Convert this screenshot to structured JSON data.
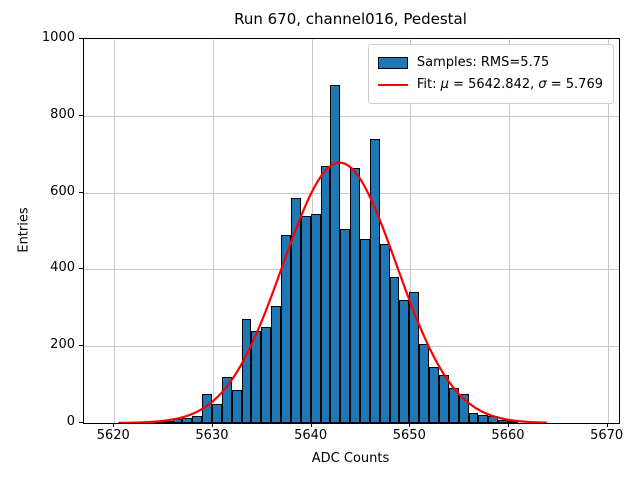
{
  "title": "Run 670, channel016, Pedestal",
  "xlabel": "ADC Counts",
  "ylabel": "Entries",
  "legend": {
    "samples_label": "Samples: RMS=5.75",
    "fit_prefix": "Fit: ",
    "fit_mu_symbol": "μ",
    "fit_mu_value": " = 5642.842, ",
    "fit_sigma_symbol": "σ",
    "fit_sigma_value": " = 5.769"
  },
  "colors": {
    "bar_fill": "#1f77b4",
    "bar_edge": "#000000",
    "fit_line": "#ff0000",
    "grid": "#c9c9c9",
    "background": "#ffffff"
  },
  "chart_data": {
    "type": "bar",
    "subtype": "histogram",
    "title": "Run 670, channel016, Pedestal",
    "xlabel": "ADC Counts",
    "ylabel": "Entries",
    "bin_start": 5623.9,
    "bin_width": 1,
    "values": [
      3,
      6,
      11,
      14,
      19,
      75,
      50,
      120,
      85,
      270,
      240,
      250,
      305,
      490,
      585,
      540,
      545,
      670,
      880,
      505,
      665,
      480,
      740,
      465,
      380,
      320,
      340,
      205,
      145,
      125,
      90,
      75,
      25,
      22,
      17,
      7,
      3
    ],
    "x_ticks": [
      5620,
      5630,
      5640,
      5650,
      5660,
      5670
    ],
    "y_ticks": [
      0,
      200,
      400,
      600,
      800,
      1000
    ],
    "xlim": [
      5616.93,
      5671.15
    ],
    "ylim": [
      0,
      1000
    ],
    "grid": true,
    "legend_position": "upper right",
    "series": [
      {
        "name": "Samples: RMS=5.75",
        "type": "histogram"
      },
      {
        "name": "Fit: μ = 5642.842, σ = 5.769",
        "type": "gaussian-fit",
        "amplitude": 678,
        "mu": 5642.842,
        "sigma": 5.769,
        "curve_x_min": 5620.5,
        "curve_x_max": 5663.9
      }
    ]
  }
}
